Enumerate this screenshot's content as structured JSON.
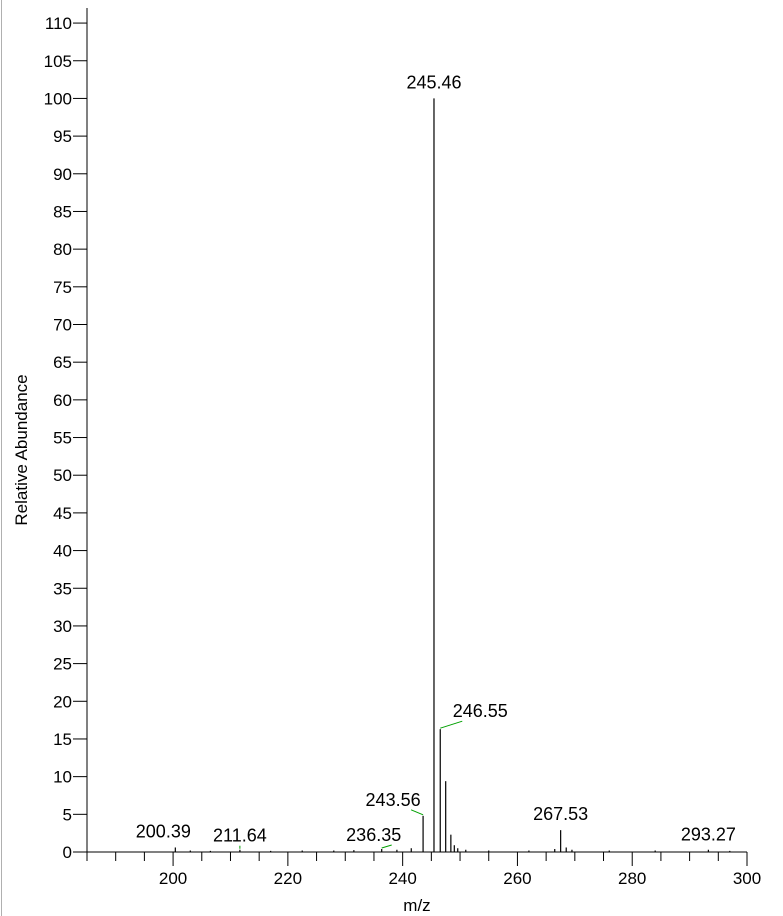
{
  "chart_data": {
    "type": "bar",
    "title": "",
    "xlabel": "m/z",
    "ylabel": "Relative Abundance",
    "xlim": [
      185,
      300
    ],
    "ylim": [
      0,
      112
    ],
    "x_major_ticks": [
      200,
      220,
      240,
      260,
      280,
      300
    ],
    "x_minor_step": 5,
    "y_ticks": [
      0,
      5,
      10,
      15,
      20,
      25,
      30,
      35,
      40,
      45,
      50,
      55,
      60,
      65,
      70,
      75,
      80,
      85,
      90,
      95,
      100,
      105,
      110
    ],
    "grid": false,
    "label_leader_color": "#00a000",
    "peaks": [
      {
        "mz": 200.39,
        "intensity": 0.6
      },
      {
        "mz": 203.0,
        "intensity": 0.2
      },
      {
        "mz": 206.5,
        "intensity": 0.15
      },
      {
        "mz": 211.64,
        "intensity": 0.3
      },
      {
        "mz": 217.0,
        "intensity": 0.15
      },
      {
        "mz": 222.5,
        "intensity": 0.2
      },
      {
        "mz": 228.0,
        "intensity": 0.2
      },
      {
        "mz": 231.5,
        "intensity": 0.25
      },
      {
        "mz": 236.35,
        "intensity": 0.4
      },
      {
        "mz": 239.0,
        "intensity": 0.3
      },
      {
        "mz": 241.5,
        "intensity": 0.5
      },
      {
        "mz": 243.56,
        "intensity": 4.8
      },
      {
        "mz": 245.46,
        "intensity": 100.0
      },
      {
        "mz": 246.55,
        "intensity": 16.3
      },
      {
        "mz": 247.5,
        "intensity": 9.4
      },
      {
        "mz": 248.4,
        "intensity": 2.3
      },
      {
        "mz": 249.0,
        "intensity": 0.9
      },
      {
        "mz": 249.6,
        "intensity": 0.5
      },
      {
        "mz": 251.0,
        "intensity": 0.3
      },
      {
        "mz": 255.0,
        "intensity": 0.2
      },
      {
        "mz": 262.0,
        "intensity": 0.2
      },
      {
        "mz": 266.5,
        "intensity": 0.4
      },
      {
        "mz": 267.53,
        "intensity": 2.9
      },
      {
        "mz": 268.5,
        "intensity": 0.6
      },
      {
        "mz": 269.5,
        "intensity": 0.3
      },
      {
        "mz": 276.0,
        "intensity": 0.2
      },
      {
        "mz": 284.0,
        "intensity": 0.2
      },
      {
        "mz": 293.27,
        "intensity": 0.3
      },
      {
        "mz": 297.0,
        "intensity": 0.15
      }
    ],
    "annotations": [
      {
        "text": "245.46",
        "mz": 245.46,
        "intensity": 100.0,
        "leader": false
      },
      {
        "text": "246.55",
        "mz": 246.55,
        "intensity": 16.3,
        "leader": true
      },
      {
        "text": "243.56",
        "mz": 243.56,
        "intensity": 4.8,
        "leader": true
      },
      {
        "text": "267.53",
        "mz": 267.53,
        "intensity": 2.9,
        "leader": false
      },
      {
        "text": "200.39",
        "mz": 200.39,
        "intensity": 0.6,
        "leader": false
      },
      {
        "text": "211.64",
        "mz": 211.64,
        "intensity": 0.3,
        "leader": true
      },
      {
        "text": "236.35",
        "mz": 236.35,
        "intensity": 0.4,
        "leader": true
      },
      {
        "text": "293.27",
        "mz": 293.27,
        "intensity": 0.3,
        "leader": false
      }
    ]
  }
}
